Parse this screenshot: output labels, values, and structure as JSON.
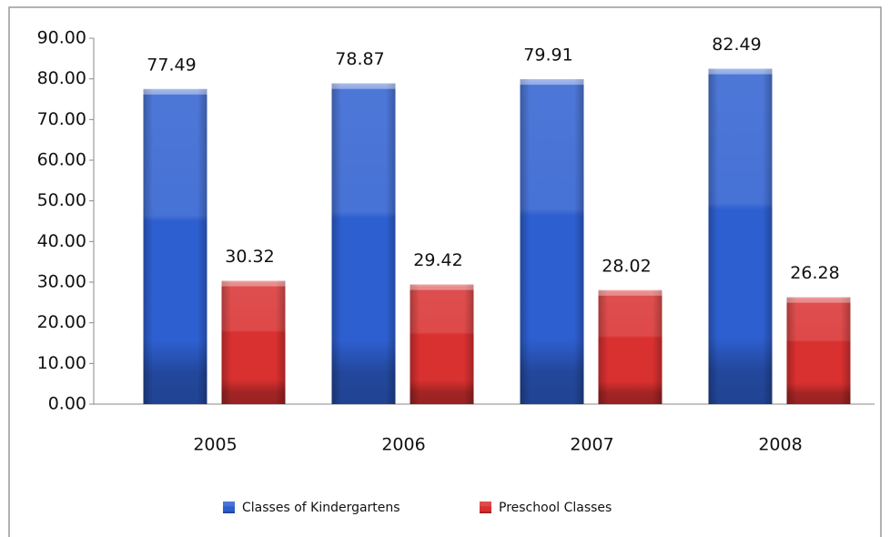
{
  "chart_data": {
    "type": "bar",
    "categories": [
      "2005",
      "2006",
      "2007",
      "2008"
    ],
    "series": [
      {
        "name": "Classes of Kindergartens",
        "color": "#2e5fd0",
        "values": [
          77.49,
          78.87,
          79.91,
          82.49
        ]
      },
      {
        "name": "Preschool Classes",
        "color": "#d93030",
        "values": [
          30.32,
          29.42,
          28.02,
          26.28
        ]
      }
    ],
    "ylim": [
      0,
      90
    ],
    "yticks": [
      {
        "value": 0,
        "label": "0.00"
      },
      {
        "value": 10,
        "label": "10.00"
      },
      {
        "value": 20,
        "label": "20.00"
      },
      {
        "value": 30,
        "label": "30.00"
      },
      {
        "value": 40,
        "label": "40.00"
      },
      {
        "value": 50,
        "label": "50.00"
      },
      {
        "value": 60,
        "label": "60.00"
      },
      {
        "value": 70,
        "label": "70.00"
      },
      {
        "value": 80,
        "label": "80.00"
      },
      {
        "value": 90,
        "label": "90.00"
      }
    ],
    "legend": "bottom"
  }
}
